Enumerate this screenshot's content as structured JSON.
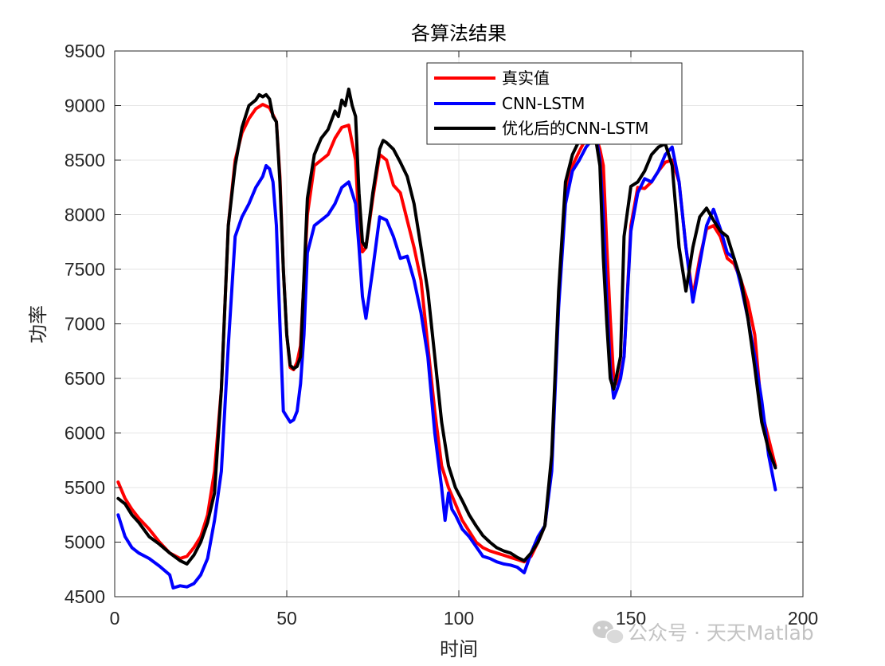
{
  "chart_data": {
    "type": "line",
    "title": "各算法结果",
    "xlabel": "时间",
    "ylabel": "功率",
    "xlim": [
      0,
      200
    ],
    "ylim": [
      4500,
      9500
    ],
    "xticks": [
      "0",
      "50",
      "100",
      "150",
      "200"
    ],
    "yticks": [
      "4500",
      "5000",
      "5500",
      "6000",
      "6500",
      "7000",
      "7500",
      "8000",
      "8500",
      "9000",
      "9500"
    ],
    "grid": true,
    "legend_position": "top-right",
    "series": [
      {
        "name": "真实值",
        "color": "#ff0000",
        "x": [
          1,
          3,
          5,
          7,
          10,
          13,
          16,
          19,
          21,
          23,
          25,
          27,
          29,
          31,
          33,
          35,
          37,
          39,
          41,
          43,
          45,
          47,
          48,
          49,
          50,
          51,
          52,
          53,
          54,
          56,
          58,
          60,
          62,
          64,
          66,
          68,
          70,
          71,
          72,
          73,
          75,
          77,
          79,
          81,
          83,
          85,
          87,
          89,
          91,
          93,
          95,
          97,
          99,
          101,
          103,
          105,
          107,
          109,
          111,
          113,
          115,
          117,
          119,
          121,
          123,
          125,
          127,
          129,
          131,
          133,
          135,
          137,
          139,
          140,
          141,
          142,
          143,
          144,
          145,
          146,
          147,
          148,
          150,
          152,
          154,
          156,
          158,
          160,
          162,
          164,
          166,
          168,
          170,
          172,
          174,
          176,
          178,
          180,
          182,
          184,
          186,
          188,
          190,
          192
        ],
        "y": [
          5550,
          5400,
          5300,
          5220,
          5120,
          5000,
          4900,
          4850,
          4870,
          4950,
          5050,
          5250,
          5650,
          6400,
          7900,
          8500,
          8750,
          8880,
          8970,
          9010,
          8980,
          8850,
          8350,
          7500,
          6900,
          6600,
          6580,
          6650,
          6800,
          8000,
          8450,
          8500,
          8550,
          8700,
          8800,
          8820,
          8500,
          7900,
          7660,
          7700,
          8150,
          8550,
          8500,
          8270,
          8200,
          7950,
          7700,
          7400,
          6800,
          6200,
          5700,
          5500,
          5350,
          5200,
          5100,
          5000,
          4950,
          4920,
          4900,
          4880,
          4860,
          4840,
          4820,
          4870,
          5000,
          5150,
          5700,
          7200,
          8200,
          8450,
          8580,
          8700,
          8760,
          8700,
          8600,
          8450,
          7700,
          7050,
          6500,
          6450,
          6550,
          6700,
          7900,
          8250,
          8240,
          8300,
          8400,
          8480,
          8500,
          8300,
          7700,
          7250,
          7600,
          7870,
          7900,
          7800,
          7600,
          7550,
          7400,
          7200,
          6900,
          6200,
          5950,
          5700
        ]
      },
      {
        "name": "CNN-LSTM",
        "color": "#0000ff",
        "x": [
          1,
          3,
          5,
          7,
          10,
          13,
          16,
          17,
          19,
          21,
          23,
          25,
          27,
          29,
          31,
          33,
          35,
          37,
          39,
          41,
          43,
          44,
          45,
          46,
          47,
          48,
          49,
          50,
          51,
          52,
          53,
          54,
          55,
          56,
          58,
          60,
          62,
          64,
          66,
          68,
          70,
          71,
          72,
          73,
          75,
          77,
          79,
          81,
          83,
          85,
          87,
          89,
          91,
          93,
          95,
          96,
          97,
          98,
          99,
          101,
          103,
          105,
          107,
          109,
          111,
          113,
          115,
          117,
          119,
          121,
          123,
          125,
          127,
          129,
          131,
          133,
          135,
          137,
          139,
          140,
          141,
          142,
          143,
          144,
          145,
          146,
          147,
          148,
          150,
          152,
          154,
          156,
          158,
          160,
          162,
          164,
          166,
          168,
          170,
          172,
          174,
          176,
          178,
          180,
          182,
          184,
          186,
          188,
          190,
          192
        ],
        "y": [
          5250,
          5050,
          4950,
          4900,
          4850,
          4780,
          4700,
          4580,
          4600,
          4590,
          4620,
          4700,
          4850,
          5200,
          5650,
          6800,
          7800,
          7980,
          8100,
          8250,
          8350,
          8450,
          8420,
          8300,
          7900,
          7000,
          6200,
          6150,
          6100,
          6120,
          6200,
          6450,
          6900,
          7650,
          7900,
          7950,
          8000,
          8100,
          8250,
          8300,
          8100,
          7700,
          7250,
          7050,
          7500,
          7980,
          7950,
          7800,
          7600,
          7620,
          7400,
          7100,
          6700,
          6000,
          5500,
          5200,
          5450,
          5300,
          5250,
          5120,
          5050,
          4960,
          4870,
          4850,
          4820,
          4800,
          4790,
          4770,
          4720,
          4900,
          5050,
          5150,
          5650,
          7150,
          8100,
          8400,
          8500,
          8620,
          8700,
          8710,
          8500,
          8000,
          7200,
          6600,
          6320,
          6400,
          6500,
          6700,
          7850,
          8200,
          8330,
          8300,
          8400,
          8550,
          8620,
          8300,
          7700,
          7200,
          7550,
          7900,
          8050,
          7870,
          7650,
          7600,
          7350,
          7050,
          6700,
          6300,
          5800,
          5480
        ]
      },
      {
        "name": "优化后的CNN-LSTM",
        "color": "#000000",
        "x": [
          1,
          3,
          5,
          7,
          10,
          13,
          16,
          19,
          21,
          23,
          25,
          27,
          29,
          31,
          33,
          35,
          37,
          39,
          41,
          42,
          43,
          44,
          45,
          46,
          47,
          48,
          49,
          50,
          51,
          52,
          53,
          54,
          56,
          58,
          60,
          62,
          64,
          65,
          66,
          67,
          68,
          69,
          70,
          71,
          72,
          73,
          75,
          77,
          78,
          79,
          81,
          83,
          85,
          87,
          89,
          91,
          93,
          95,
          97,
          99,
          101,
          103,
          105,
          107,
          109,
          111,
          113,
          115,
          117,
          119,
          121,
          123,
          125,
          127,
          129,
          131,
          133,
          135,
          137,
          139,
          140,
          141,
          142,
          143,
          144,
          145,
          146,
          147,
          148,
          150,
          152,
          154,
          156,
          158,
          160,
          162,
          164,
          166,
          168,
          170,
          172,
          174,
          176,
          178,
          180,
          182,
          184,
          186,
          188,
          190,
          192
        ],
        "y": [
          5400,
          5350,
          5250,
          5180,
          5050,
          4980,
          4900,
          4830,
          4800,
          4880,
          5000,
          5180,
          5450,
          6400,
          7900,
          8450,
          8800,
          9000,
          9050,
          9100,
          9080,
          9100,
          9060,
          8900,
          8850,
          8300,
          7500,
          6900,
          6620,
          6590,
          6610,
          6700,
          8150,
          8550,
          8700,
          8780,
          8950,
          8900,
          9050,
          9000,
          9150,
          9000,
          8900,
          8200,
          7750,
          7700,
          8200,
          8600,
          8680,
          8660,
          8600,
          8480,
          8350,
          8100,
          7700,
          7300,
          6700,
          6100,
          5700,
          5500,
          5380,
          5250,
          5150,
          5060,
          5000,
          4950,
          4920,
          4900,
          4860,
          4830,
          4900,
          5000,
          5150,
          5800,
          7300,
          8300,
          8550,
          8680,
          8720,
          8760,
          8650,
          8450,
          7600,
          7000,
          6500,
          6400,
          6550,
          6700,
          7800,
          8260,
          8300,
          8400,
          8550,
          8620,
          8650,
          8450,
          7700,
          7300,
          7700,
          7980,
          8060,
          7950,
          7850,
          7800,
          7600,
          7400,
          7050,
          6600,
          6100,
          5850,
          5680
        ]
      }
    ]
  },
  "watermark": {
    "text": "公众号 · 天天Matlab",
    "icon": "wechat-icon"
  }
}
